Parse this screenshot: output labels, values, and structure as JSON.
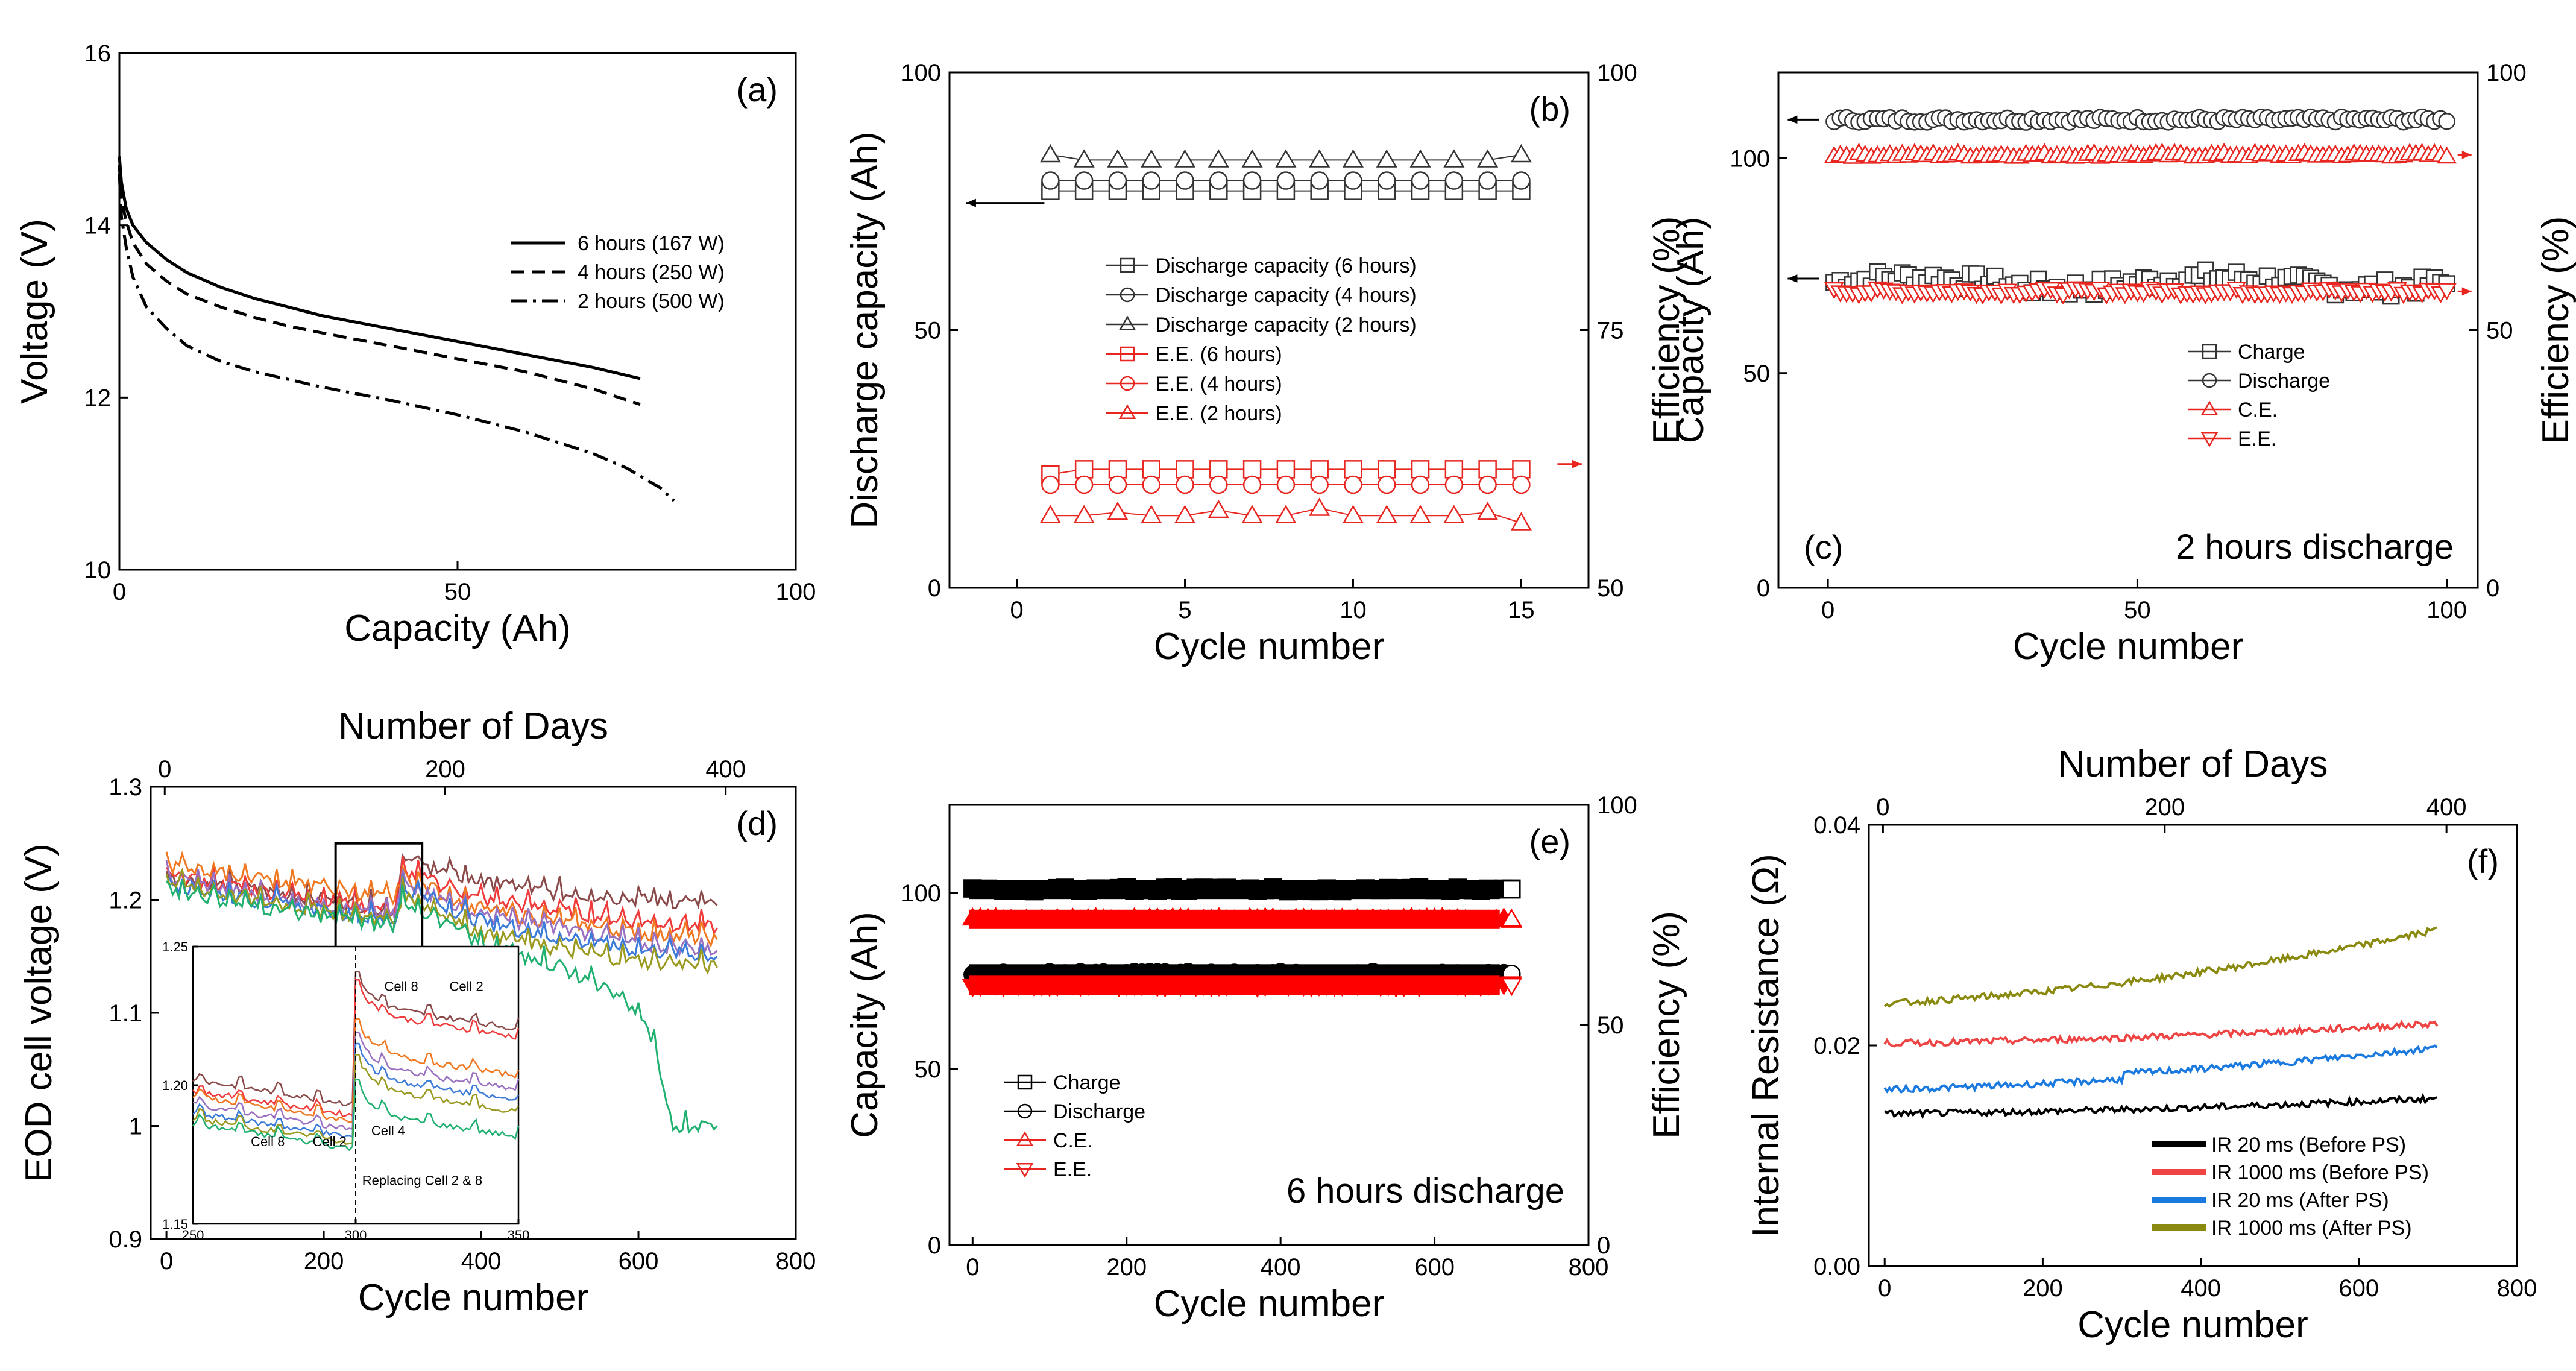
{
  "chart_data": [
    {
      "id": "a",
      "type": "line",
      "panel_label": "(a)",
      "xlabel": "Capacity (Ah)",
      "ylabel": "Voltage (V)",
      "xlim": [
        0,
        100
      ],
      "ylim": [
        10,
        16
      ],
      "xticks": [
        0,
        50,
        100
      ],
      "yticks": [
        10,
        12,
        14,
        16
      ],
      "series": [
        {
          "name": "6 hours (167 W)",
          "dash": "solid",
          "x": [
            0,
            0.3,
            1,
            2,
            4,
            7,
            10,
            15,
            20,
            25,
            30,
            40,
            50,
            60,
            70,
            77
          ],
          "y": [
            14.8,
            14.5,
            14.2,
            14.0,
            13.8,
            13.6,
            13.45,
            13.28,
            13.15,
            13.05,
            12.95,
            12.8,
            12.65,
            12.5,
            12.35,
            12.22
          ]
        },
        {
          "name": "4 hours (250 W)",
          "dash": "dash",
          "x": [
            0,
            0.3,
            1,
            2,
            4,
            7,
            10,
            15,
            20,
            25,
            30,
            40,
            50,
            60,
            70,
            77
          ],
          "y": [
            14.7,
            14.3,
            14.05,
            13.8,
            13.55,
            13.35,
            13.2,
            13.05,
            12.93,
            12.83,
            12.75,
            12.6,
            12.45,
            12.3,
            12.1,
            11.92
          ]
        },
        {
          "name": "2 hours (500 W)",
          "dash": "dashdot",
          "x": [
            0,
            0.3,
            1,
            2,
            4,
            7,
            10,
            15,
            20,
            30,
            40,
            50,
            60,
            70,
            75,
            80,
            82
          ],
          "y": [
            14.6,
            14.1,
            13.75,
            13.4,
            13.05,
            12.8,
            12.6,
            12.42,
            12.3,
            12.12,
            11.97,
            11.8,
            11.6,
            11.35,
            11.18,
            10.95,
            10.8
          ]
        }
      ]
    },
    {
      "id": "b",
      "type": "scatter",
      "panel_label": "(b)",
      "xlabel": "Cycle number",
      "ylabel": "Discharge capacity (Ah)",
      "y2label": "Efficiency (%)",
      "xlim": [
        -2,
        17
      ],
      "ylim": [
        0,
        100
      ],
      "y2lim": [
        50,
        100
      ],
      "xticks": [
        0,
        5,
        10,
        15
      ],
      "yticks": [
        0,
        50,
        100
      ],
      "y2ticks": [
        50,
        75,
        100
      ],
      "series": [
        {
          "name": "Discharge capacity (6 hours)",
          "marker": "square",
          "color": "#333333",
          "axis": "left",
          "x": [
            1,
            2,
            3,
            4,
            5,
            6,
            7,
            8,
            9,
            10,
            11,
            12,
            13,
            14,
            15
          ],
          "y": [
            77,
            77,
            77,
            77,
            77,
            77,
            77,
            77,
            77,
            77,
            77,
            77,
            77,
            77,
            77
          ]
        },
        {
          "name": "Discharge capacity (4 hours)",
          "marker": "circle",
          "color": "#333333",
          "axis": "left",
          "x": [
            1,
            2,
            3,
            4,
            5,
            6,
            7,
            8,
            9,
            10,
            11,
            12,
            13,
            14,
            15
          ],
          "y": [
            79,
            79,
            79,
            79,
            79,
            79,
            79,
            79,
            79,
            79,
            79,
            79,
            79,
            79,
            79
          ]
        },
        {
          "name": "Discharge capacity (2 hours)",
          "marker": "triangle",
          "color": "#333333",
          "axis": "left",
          "x": [
            1,
            2,
            3,
            4,
            5,
            6,
            7,
            8,
            9,
            10,
            11,
            12,
            13,
            14,
            15
          ],
          "y": [
            84,
            83,
            83,
            83,
            83,
            83,
            83,
            83,
            83,
            83,
            83,
            83,
            83,
            83,
            84
          ]
        },
        {
          "name": "E.E. (6 hours)",
          "marker": "square",
          "color": "#e8251f",
          "axis": "right",
          "x": [
            1,
            2,
            3,
            4,
            5,
            6,
            7,
            8,
            9,
            10,
            11,
            12,
            13,
            14,
            15
          ],
          "y": [
            61,
            61.5,
            61.5,
            61.5,
            61.5,
            61.5,
            61.5,
            61.5,
            61.5,
            61.5,
            61.5,
            61.5,
            61.5,
            61.5,
            61.5
          ]
        },
        {
          "name": "E.E. (4 hours)",
          "marker": "circle",
          "color": "#e8251f",
          "axis": "right",
          "x": [
            1,
            2,
            3,
            4,
            5,
            6,
            7,
            8,
            9,
            10,
            11,
            12,
            13,
            14,
            15
          ],
          "y": [
            60,
            60,
            60,
            60,
            60,
            60,
            60,
            60,
            60,
            60,
            60,
            60,
            60,
            60,
            60
          ]
        },
        {
          "name": "E.E. (2 hours)",
          "marker": "triangle",
          "color": "#e8251f",
          "axis": "right",
          "x": [
            1,
            2,
            3,
            4,
            5,
            6,
            7,
            8,
            9,
            10,
            11,
            12,
            13,
            14,
            15
          ],
          "y": [
            57,
            57,
            57.3,
            57,
            57,
            57.5,
            57,
            57,
            57.7,
            57,
            57,
            57,
            57,
            57.3,
            56.3
          ]
        }
      ]
    },
    {
      "id": "c",
      "type": "scatter",
      "panel_label": "(c)",
      "annotation": "2 hours discharge",
      "xlabel": "Cycle number",
      "ylabel": "Capacity (Ah)",
      "y2label": "Efficiency (%)",
      "xlim": [
        -8,
        105
      ],
      "ylim": [
        0,
        120
      ],
      "y2lim": [
        0,
        100
      ],
      "xticks": [
        0,
        50,
        100
      ],
      "yticks": [
        0,
        50,
        100
      ],
      "y2ticks": [
        0,
        50,
        100
      ],
      "series": [
        {
          "name": "Charge",
          "marker": "square",
          "color": "#333333",
          "axis": "left",
          "x_range": [
            1,
            100
          ],
          "y_base": 71,
          "y_noise": 2
        },
        {
          "name": "Discharge",
          "marker": "circle",
          "color": "#333333",
          "axis": "left",
          "x_range": [
            1,
            100
          ],
          "y_base": 109,
          "y_noise": 0.6
        },
        {
          "name": "C.E.",
          "marker": "triangle",
          "color": "#e8251f",
          "axis": "right",
          "x_range": [
            1,
            100
          ],
          "y_base": 84,
          "y_noise": 0.4
        },
        {
          "name": "E.E.",
          "marker": "triangle-down",
          "color": "#e8251f",
          "axis": "right",
          "x_range": [
            1,
            100
          ],
          "y_base": 57.5,
          "y_noise": 0.6
        }
      ]
    },
    {
      "id": "d",
      "type": "line",
      "panel_label": "(d)",
      "xlabel": "Cycle number",
      "ylabel": "EOD cell voltage (V)",
      "x2label": "Number of Days",
      "xlim": [
        -20,
        800
      ],
      "ylim": [
        0.9,
        1.3
      ],
      "x2lim": [
        -10,
        450
      ],
      "xticks": [
        0,
        200,
        400,
        600,
        800
      ],
      "yticks": [
        0.9,
        1.0,
        1.1,
        1.2,
        1.3
      ],
      "x2ticks": [
        0,
        200,
        400
      ],
      "series": [
        {
          "name": "cell-brown",
          "color": "#8b4a4a",
          "y_points": [
            [
              0,
              1.22
            ],
            [
              100,
              1.21
            ],
            [
              200,
              1.2
            ],
            [
              290,
              1.19
            ],
            [
              300,
              1.235
            ],
            [
              400,
              1.215
            ],
            [
              500,
              1.205
            ],
            [
              600,
              1.2
            ],
            [
              700,
              1.195
            ]
          ]
        },
        {
          "name": "cell-red",
          "color": "#ef3b3b",
          "y_points": [
            [
              0,
              1.22
            ],
            [
              100,
              1.21
            ],
            [
              200,
              1.2
            ],
            [
              290,
              1.19
            ],
            [
              300,
              1.225
            ],
            [
              400,
              1.2
            ],
            [
              500,
              1.19
            ],
            [
              600,
              1.18
            ],
            [
              700,
              1.175
            ]
          ]
        },
        {
          "name": "cell-orange",
          "color": "#f07820",
          "y_points": [
            [
              0,
              1.23
            ],
            [
              100,
              1.22
            ],
            [
              200,
              1.21
            ],
            [
              290,
              1.2
            ],
            [
              300,
              1.22
            ],
            [
              400,
              1.19
            ],
            [
              500,
              1.18
            ],
            [
              600,
              1.17
            ],
            [
              700,
              1.165
            ]
          ]
        },
        {
          "name": "cell-purple",
          "color": "#9a70c0",
          "y_points": [
            [
              0,
              1.22
            ],
            [
              100,
              1.205
            ],
            [
              200,
              1.195
            ],
            [
              290,
              1.185
            ],
            [
              300,
              1.215
            ],
            [
              400,
              1.185
            ],
            [
              500,
              1.175
            ],
            [
              600,
              1.16
            ],
            [
              700,
              1.155
            ]
          ]
        },
        {
          "name": "cell-blue",
          "color": "#3a7ad8",
          "y_points": [
            [
              0,
              1.215
            ],
            [
              100,
              1.2
            ],
            [
              200,
              1.19
            ],
            [
              290,
              1.18
            ],
            [
              300,
              1.21
            ],
            [
              400,
              1.18
            ],
            [
              500,
              1.165
            ],
            [
              600,
              1.155
            ],
            [
              700,
              1.15
            ]
          ]
        },
        {
          "name": "cell-olive",
          "color": "#9a9a20",
          "y_points": [
            [
              0,
              1.215
            ],
            [
              100,
              1.2
            ],
            [
              200,
              1.19
            ],
            [
              290,
              1.18
            ],
            [
              300,
              1.205
            ],
            [
              400,
              1.17
            ],
            [
              500,
              1.155
            ],
            [
              600,
              1.145
            ],
            [
              700,
              1.14
            ]
          ]
        },
        {
          "name": "cell-green",
          "color": "#20b070",
          "y_points": [
            [
              0,
              1.21
            ],
            [
              100,
              1.195
            ],
            [
              200,
              1.185
            ],
            [
              290,
              1.175
            ],
            [
              300,
              1.2
            ],
            [
              400,
              1.16
            ],
            [
              500,
              1.14
            ],
            [
              560,
              1.12
            ],
            [
              600,
              1.1
            ],
            [
              620,
              1.07
            ],
            [
              640,
              1.0
            ],
            [
              700,
              1.0
            ]
          ]
        }
      ],
      "inset": {
        "xlim": [
          250,
          350
        ],
        "ylim": [
          1.15,
          1.25
        ],
        "xticks": [
          250,
          300,
          350
        ],
        "yticks": [
          1.15,
          1.2,
          1.25
        ],
        "labels": [
          "Cell 8",
          "Cell 2",
          "Cell 8",
          "Cell 2",
          "Cell 4",
          "Replacing Cell 2 & 8"
        ]
      }
    },
    {
      "id": "e",
      "type": "scatter",
      "panel_label": "(e)",
      "annotation": "6 hours discharge",
      "xlabel": "Cycle number",
      "ylabel": "Capacity (Ah)",
      "y2label": "Efficiency (%)",
      "xlim": [
        -30,
        800
      ],
      "ylim": [
        0,
        125
      ],
      "y2lim": [
        0,
        100
      ],
      "xticks": [
        0,
        200,
        400,
        600,
        800
      ],
      "yticks": [
        0,
        50,
        100
      ],
      "y2ticks": [
        0,
        50,
        100
      ],
      "series": [
        {
          "name": "Charge",
          "marker": "square",
          "color": "#000000",
          "axis": "left",
          "x_range": [
            0,
            700
          ],
          "y_base": 101
        },
        {
          "name": "Discharge",
          "marker": "circle",
          "color": "#000000",
          "axis": "left",
          "x_range": [
            0,
            700
          ],
          "y_base": 77
        },
        {
          "name": "C.E.",
          "marker": "triangle",
          "color": "#ff0000",
          "axis": "right",
          "x_range": [
            0,
            700
          ],
          "y_base": 74
        },
        {
          "name": "E.E.",
          "marker": "triangle-down",
          "color": "#ff0000",
          "axis": "right",
          "x_range": [
            0,
            700
          ],
          "y_base": 59
        }
      ]
    },
    {
      "id": "f",
      "type": "line",
      "panel_label": "(f)",
      "xlabel": "Cycle number",
      "ylabel": "Internal Resistance (Ω)",
      "x2label": "Number of Days",
      "xlim": [
        -20,
        800
      ],
      "ylim": [
        0.0,
        0.04
      ],
      "x2lim": [
        -10,
        450
      ],
      "xticks": [
        0,
        200,
        400,
        600,
        800
      ],
      "yticks": [
        0.0,
        0.02,
        0.04
      ],
      "ytick_labels": [
        "0.00",
        "0.02",
        "0.04"
      ],
      "x2ticks": [
        0,
        200,
        400
      ],
      "series": [
        {
          "name": "IR 20 ms (Before PS)",
          "color": "#000000",
          "y_start": 0.0138,
          "y_end": 0.0152
        },
        {
          "name": "IR 1000 ms (Before PS)",
          "color": "#ef4444",
          "y_start": 0.0202,
          "y_end": 0.022
        },
        {
          "name": "IR 20 ms (After PS)",
          "color": "#1a7ae0",
          "y_start": 0.016,
          "y_end": 0.0193
        },
        {
          "name": "IR 1000 ms (After PS)",
          "color": "#8a8a10",
          "y_start": 0.0238,
          "y_end": 0.0305
        }
      ]
    }
  ]
}
